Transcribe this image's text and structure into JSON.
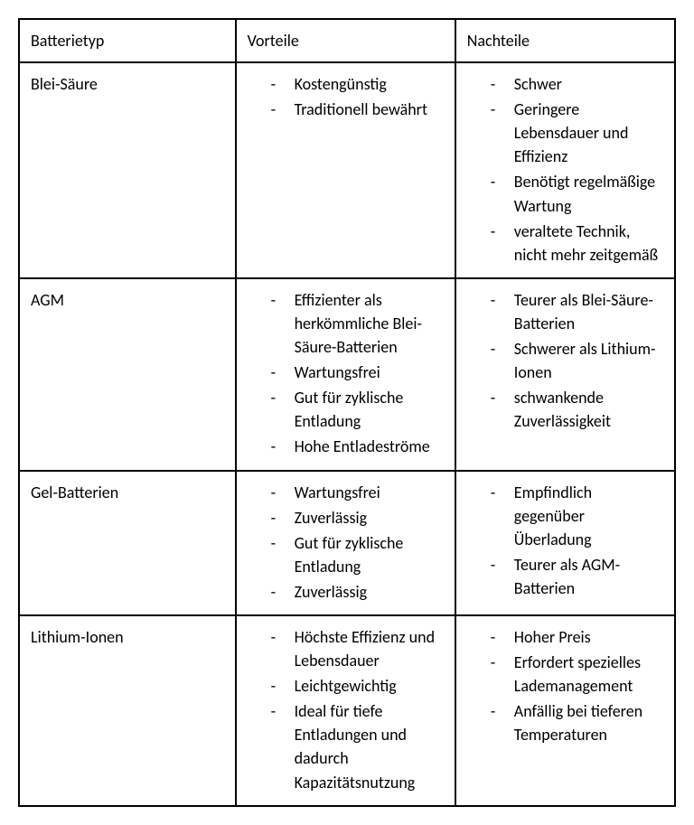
{
  "table": {
    "type": "table",
    "columns": [
      "Batterietyp",
      "Vorteile",
      "Nachteile"
    ],
    "column_widths_pct": [
      33,
      33.5,
      33.5
    ],
    "border_color": "#000000",
    "background_color": "#ffffff",
    "text_color": "#000000",
    "font_family": "Calibri, Arial, sans-serif",
    "header_fontsize": 18,
    "cell_fontsize": 18,
    "bullet_char": "-",
    "rows": [
      {
        "type": "Blei-Säure",
        "advantages": [
          "Kostengünstig",
          "Traditionell bewährt"
        ],
        "disadvantages": [
          "Schwer",
          "Geringere Lebensdauer und Effizienz",
          "Benötigt regelmäßige Wartung",
          "veraltete Technik, nicht mehr zeitgemäß"
        ]
      },
      {
        "type": "AGM",
        "advantages": [
          "Effizienter als herkömmliche Blei-Säure-Batterien",
          "Wartungsfrei",
          "Gut für zyklische Entladung",
          "Hohe Entladeströme"
        ],
        "disadvantages": [
          "Teurer als Blei-Säure-Batterien",
          "Schwerer als Lithium-Ionen",
          "schwankende Zuverlässigkeit"
        ]
      },
      {
        "type": "Gel-Batterien",
        "advantages": [
          "Wartungsfrei",
          "Zuverlässig",
          "Gut für zyklische Entladung",
          "Zuverlässig"
        ],
        "disadvantages": [
          "Empfindlich gegenüber Überladung",
          "Teurer als AGM-Batterien"
        ]
      },
      {
        "type": "Lithium-Ionen",
        "advantages": [
          "Höchste Effizienz und Lebensdauer",
          "Leichtgewichtig",
          "Ideal für tiefe Entladungen und dadurch Kapazitätsnutzung"
        ],
        "disadvantages": [
          "Hoher Preis",
          "Erfordert spezielles Lademanagement",
          "Anfällig bei tieferen Temperaturen"
        ]
      }
    ]
  }
}
